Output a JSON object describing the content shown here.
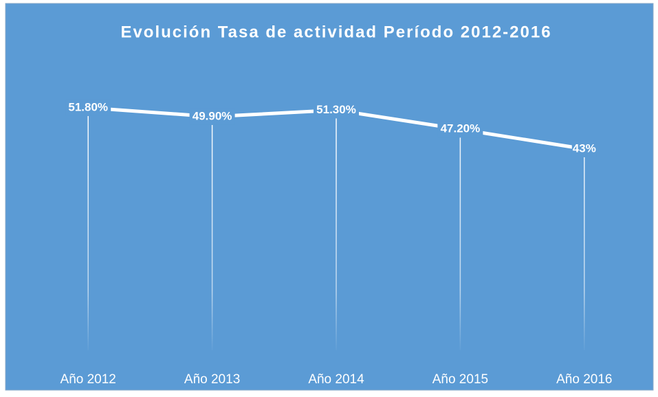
{
  "chart_data": {
    "type": "line",
    "title": "Evolución Tasa de actividad Período 2012-2016",
    "categories": [
      "Año 2012",
      "Año 2013",
      "Año 2014",
      "Año 2015",
      "Año 2016"
    ],
    "series": [
      {
        "name": "Tasa de actividad",
        "color": "#ffffff",
        "values": [
          51.8,
          49.9,
          51.3,
          47.2,
          43
        ],
        "value_labels": [
          "51.80%",
          "49.90%",
          "51.30%",
          "47.20%",
          "43%"
        ]
      }
    ],
    "ylim": [
      0,
      60
    ],
    "drop_lines": true,
    "background": "#5b9bd5"
  }
}
